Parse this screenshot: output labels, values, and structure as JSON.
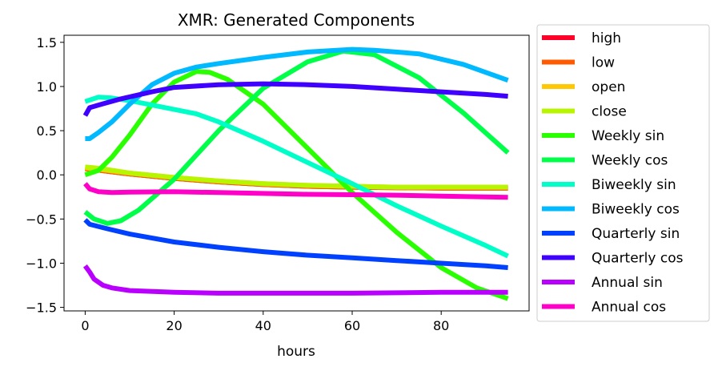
{
  "chart_data": {
    "type": "line",
    "title": "XMR: Generated Components",
    "xlabel": "hours",
    "ylabel": "",
    "xlim": [
      -4.75,
      99.75
    ],
    "ylim": [
      -1.54,
      1.58
    ],
    "xticks": [
      0,
      20,
      40,
      60,
      80
    ],
    "yticks": [
      -1.5,
      -1.0,
      -0.5,
      0.0,
      0.5,
      1.0,
      1.5
    ],
    "xtick_labels": [
      "0",
      "20",
      "40",
      "60",
      "80"
    ],
    "ytick_labels": [
      "−1.5",
      "−1.0",
      "−0.5",
      "0.0",
      "0.5",
      "1.0",
      "1.5"
    ],
    "grid": false,
    "legend_position": "outside-right",
    "series": [
      {
        "name": "high",
        "color": "#ff0029",
        "points": [
          [
            0,
            0.07
          ],
          [
            2,
            0.06
          ],
          [
            5,
            0.04
          ],
          [
            10,
            0.01
          ],
          [
            20,
            -0.04
          ],
          [
            30,
            -0.08
          ],
          [
            40,
            -0.11
          ],
          [
            50,
            -0.13
          ],
          [
            60,
            -0.14
          ],
          [
            70,
            -0.145
          ],
          [
            80,
            -0.15
          ],
          [
            95,
            -0.15
          ]
        ]
      },
      {
        "name": "low",
        "color": "#ff5a00",
        "points": [
          [
            0,
            0.07
          ],
          [
            2,
            0.06
          ],
          [
            5,
            0.04
          ],
          [
            10,
            0.01
          ],
          [
            20,
            -0.04
          ],
          [
            30,
            -0.08
          ],
          [
            40,
            -0.11
          ],
          [
            50,
            -0.13
          ],
          [
            60,
            -0.14
          ],
          [
            70,
            -0.145
          ],
          [
            80,
            -0.15
          ],
          [
            95,
            -0.15
          ]
        ]
      },
      {
        "name": "open",
        "color": "#ffc800",
        "points": [
          [
            0,
            0.08
          ],
          [
            2,
            0.07
          ],
          [
            5,
            0.05
          ],
          [
            10,
            0.02
          ],
          [
            20,
            -0.03
          ],
          [
            30,
            -0.07
          ],
          [
            40,
            -0.1
          ],
          [
            50,
            -0.12
          ],
          [
            60,
            -0.13
          ],
          [
            70,
            -0.14
          ],
          [
            80,
            -0.14
          ],
          [
            95,
            -0.14
          ]
        ]
      },
      {
        "name": "close",
        "color": "#b8f500",
        "points": [
          [
            0,
            0.09
          ],
          [
            2,
            0.08
          ],
          [
            5,
            0.06
          ],
          [
            10,
            0.02
          ],
          [
            20,
            -0.03
          ],
          [
            30,
            -0.07
          ],
          [
            40,
            -0.1
          ],
          [
            50,
            -0.12
          ],
          [
            60,
            -0.13
          ],
          [
            70,
            -0.14
          ],
          [
            80,
            -0.14
          ],
          [
            95,
            -0.14
          ]
        ]
      },
      {
        "name": "Weekly sin",
        "color": "#29ff00",
        "points": [
          [
            0,
            0.0
          ],
          [
            3,
            0.05
          ],
          [
            6,
            0.2
          ],
          [
            10,
            0.45
          ],
          [
            15,
            0.8
          ],
          [
            20,
            1.05
          ],
          [
            25,
            1.17
          ],
          [
            28,
            1.16
          ],
          [
            32,
            1.08
          ],
          [
            40,
            0.8
          ],
          [
            50,
            0.3
          ],
          [
            60,
            -0.2
          ],
          [
            70,
            -0.65
          ],
          [
            80,
            -1.05
          ],
          [
            88,
            -1.28
          ],
          [
            95,
            -1.4
          ]
        ]
      },
      {
        "name": "Weekly cos",
        "color": "#00ff48",
        "points": [
          [
            0,
            -0.42
          ],
          [
            2,
            -0.5
          ],
          [
            5,
            -0.55
          ],
          [
            8,
            -0.52
          ],
          [
            12,
            -0.4
          ],
          [
            20,
            -0.05
          ],
          [
            30,
            0.5
          ],
          [
            40,
            0.98
          ],
          [
            50,
            1.28
          ],
          [
            58,
            1.4
          ],
          [
            65,
            1.36
          ],
          [
            75,
            1.1
          ],
          [
            85,
            0.7
          ],
          [
            95,
            0.25
          ]
        ]
      },
      {
        "name": "Biweekly sin",
        "color": "#00ffc8",
        "points": [
          [
            0,
            0.83
          ],
          [
            3,
            0.88
          ],
          [
            6,
            0.87
          ],
          [
            10,
            0.84
          ],
          [
            15,
            0.79
          ],
          [
            20,
            0.74
          ],
          [
            25,
            0.69
          ],
          [
            30,
            0.6
          ],
          [
            40,
            0.38
          ],
          [
            50,
            0.14
          ],
          [
            60,
            -0.1
          ],
          [
            70,
            -0.35
          ],
          [
            80,
            -0.58
          ],
          [
            90,
            -0.8
          ],
          [
            95,
            -0.92
          ]
        ]
      },
      {
        "name": "Biweekly cos",
        "color": "#00b9ff",
        "points": [
          [
            0,
            0.41
          ],
          [
            1,
            0.41
          ],
          [
            3,
            0.48
          ],
          [
            6,
            0.6
          ],
          [
            10,
            0.8
          ],
          [
            15,
            1.02
          ],
          [
            20,
            1.15
          ],
          [
            25,
            1.22
          ],
          [
            30,
            1.26
          ],
          [
            40,
            1.33
          ],
          [
            50,
            1.39
          ],
          [
            60,
            1.42
          ],
          [
            65,
            1.41
          ],
          [
            75,
            1.37
          ],
          [
            85,
            1.25
          ],
          [
            95,
            1.07
          ]
        ]
      },
      {
        "name": "Quarterly sin",
        "color": "#0040ff",
        "points": [
          [
            0,
            -0.51
          ],
          [
            1,
            -0.56
          ],
          [
            5,
            -0.61
          ],
          [
            10,
            -0.67
          ],
          [
            20,
            -0.76
          ],
          [
            30,
            -0.82
          ],
          [
            40,
            -0.87
          ],
          [
            50,
            -0.91
          ],
          [
            60,
            -0.94
          ],
          [
            70,
            -0.97
          ],
          [
            80,
            -1.0
          ],
          [
            90,
            -1.03
          ],
          [
            95,
            -1.05
          ]
        ]
      },
      {
        "name": "Quarterly cos",
        "color": "#4000ff",
        "points": [
          [
            0,
            0.67
          ],
          [
            1,
            0.76
          ],
          [
            3,
            0.79
          ],
          [
            8,
            0.86
          ],
          [
            15,
            0.94
          ],
          [
            20,
            0.99
          ],
          [
            30,
            1.02
          ],
          [
            40,
            1.03
          ],
          [
            50,
            1.02
          ],
          [
            60,
            1.0
          ],
          [
            70,
            0.97
          ],
          [
            80,
            0.94
          ],
          [
            90,
            0.91
          ],
          [
            95,
            0.89
          ]
        ]
      },
      {
        "name": "Annual sin",
        "color": "#b900ff",
        "points": [
          [
            0,
            -1.03
          ],
          [
            1,
            -1.1
          ],
          [
            2,
            -1.18
          ],
          [
            4,
            -1.25
          ],
          [
            6,
            -1.28
          ],
          [
            10,
            -1.31
          ],
          [
            20,
            -1.33
          ],
          [
            30,
            -1.34
          ],
          [
            40,
            -1.34
          ],
          [
            60,
            -1.34
          ],
          [
            80,
            -1.33
          ],
          [
            95,
            -1.33
          ]
        ]
      },
      {
        "name": "Annual cos",
        "color": "#ff00c8",
        "points": [
          [
            0,
            -0.1
          ],
          [
            1,
            -0.16
          ],
          [
            3,
            -0.19
          ],
          [
            6,
            -0.2
          ],
          [
            10,
            -0.195
          ],
          [
            20,
            -0.19
          ],
          [
            30,
            -0.2
          ],
          [
            40,
            -0.21
          ],
          [
            50,
            -0.22
          ],
          [
            60,
            -0.225
          ],
          [
            70,
            -0.23
          ],
          [
            80,
            -0.24
          ],
          [
            95,
            -0.255
          ]
        ]
      }
    ]
  }
}
